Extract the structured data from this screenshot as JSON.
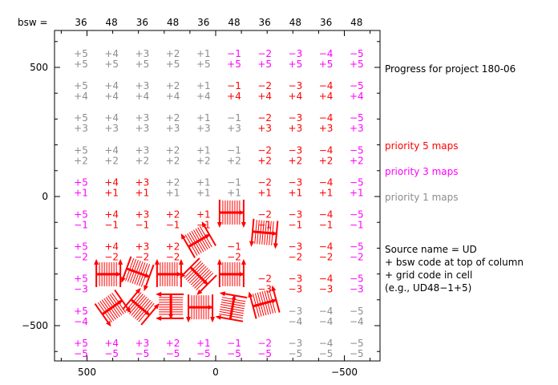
{
  "chart_data": {
    "type": "table",
    "title": "Progress for project 180-06",
    "bsw_label": "bsw =",
    "bsw_codes": [
      "36",
      "48",
      "36",
      "48",
      "36",
      "48",
      "36",
      "48",
      "36",
      "48"
    ],
    "col_codes": [
      "+5",
      "+4",
      "+3",
      "+2",
      "+1",
      "−1",
      "−2",
      "−3",
      "−4",
      "−5"
    ],
    "row_codes": [
      "+5",
      "+4",
      "+3",
      "+2",
      "+1",
      "−1",
      "−2",
      "−3",
      "−4",
      "−5"
    ],
    "xlim": [
      620,
      -620
    ],
    "ylim": [
      -640,
      640
    ],
    "x_ticks": [
      "500",
      "0",
      "−500"
    ],
    "x_tick_values": [
      500,
      0,
      -500
    ],
    "y_ticks": [
      "500",
      "0",
      "−500"
    ],
    "y_tick_values": [
      500,
      0,
      -500
    ],
    "cell_status": [
      "gggggmmmmm",
      "gggggrrrrm",
      "ggggggrrrm",
      "ggggggrrrm",
      "mrrgggrrrm",
      "mrrrrxrrrm",
      "mrrrxrxrrm",
      "mxxxxxrrrm",
      "mxxxxxxggg",
      "mmmmmmmggg"
    ],
    "status_colors": {
      "g": "#8c8c8c",
      "r": "#ff0000",
      "m": "#ff00ff"
    },
    "legend": [
      {
        "label": "priority 5 maps",
        "color": "#ff0000"
      },
      {
        "label": "priority 3 maps",
        "color": "#ff00ff"
      },
      {
        "label": "priority 1 maps",
        "color": "#8c8c8c"
      }
    ],
    "notes": [
      "Source name = UD",
      "+ bsw code at top of column",
      "+ grid code in cell",
      "(e.g., UD48−1+5)"
    ],
    "markers": [
      {
        "x": -62,
        "y": -62,
        "angle": 0,
        "dir": "down"
      },
      {
        "x": 65,
        "y": -171,
        "angle": -30,
        "dir": "up"
      },
      {
        "x": -190,
        "y": -140,
        "angle": 5,
        "dir": "down"
      },
      {
        "x": 417,
        "y": -301,
        "angle": 0,
        "dir": "up"
      },
      {
        "x": 302,
        "y": -295,
        "angle": 20,
        "dir": "down"
      },
      {
        "x": 181,
        "y": -301,
        "angle": 0,
        "dir": "up"
      },
      {
        "x": 65,
        "y": -307,
        "angle": 45,
        "dir": "down"
      },
      {
        "x": -62,
        "y": -301,
        "angle": 0,
        "dir": "up"
      },
      {
        "x": 402,
        "y": -429,
        "angle": -35,
        "dir": "down"
      },
      {
        "x": 293,
        "y": -429,
        "angle": 40,
        "dir": "up"
      },
      {
        "x": 174,
        "y": -425,
        "angle": 90,
        "dir": "down"
      },
      {
        "x": 59,
        "y": -429,
        "angle": 0,
        "dir": "down"
      },
      {
        "x": -65,
        "y": -429,
        "angle": -80,
        "dir": "up"
      },
      {
        "x": -190,
        "y": -413,
        "angle": -15,
        "dir": "up"
      }
    ],
    "marker_color": "#ff0000"
  }
}
